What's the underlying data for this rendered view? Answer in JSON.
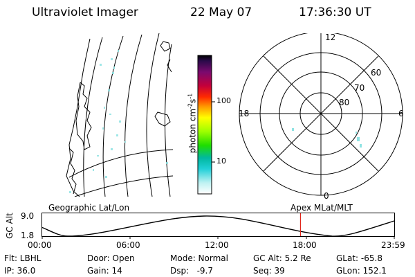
{
  "header": {
    "instrument": "Ultraviolet Imager",
    "date": "22 May 07",
    "time": "17:36:30 UT"
  },
  "colorbar": {
    "label_main": "photon cm",
    "label_sup1": "-2",
    "label_mid": "s",
    "label_sup2": "-1",
    "ticks": [
      "100",
      "10"
    ],
    "scale": "log"
  },
  "polar": {
    "mlt_labels": {
      "top": "12",
      "right": "6",
      "bottom": "0",
      "left": "18"
    },
    "lat_labels": [
      "60",
      "70",
      "80"
    ]
  },
  "timeline": {
    "left_label": "Geographic Lat/Lon",
    "right_label": "Apex MLat/MLT",
    "ylabel": "GC Alt",
    "y_ticks": [
      "9.0",
      "1.8"
    ],
    "x_ticks": [
      "00:00",
      "06:00",
      "12:00",
      "18:00",
      "23:59"
    ],
    "marker_time": "17:36:30",
    "marker_color": "#e0261b"
  },
  "info": {
    "filter": "Flt: LBHL",
    "ip": "IP: 36.0",
    "door": "Door: Open",
    "gain": "Gain: 14",
    "mode": "Mode: Normal",
    "dsp": "Dsp:   -9.7",
    "gc_alt": "GC Alt: 5.2 Re",
    "seq": "Seq: 39",
    "glat": "GLat: -65.8",
    "glon": "GLon: 152.1"
  }
}
